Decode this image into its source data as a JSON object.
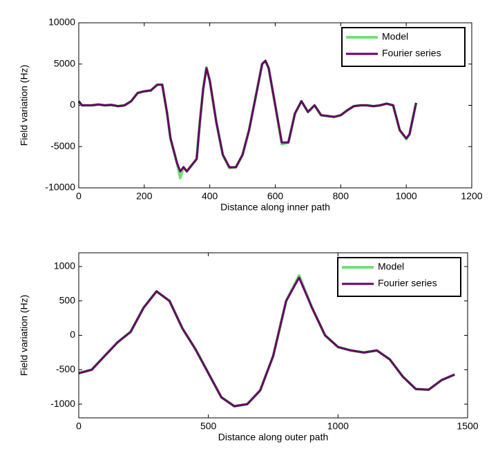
{
  "chart_data": [
    {
      "type": "line",
      "xlabel": "Distance along inner path",
      "ylabel": "Field variation (Hz)",
      "x": [
        0,
        10,
        40,
        60,
        80,
        100,
        120,
        140,
        160,
        180,
        200,
        220,
        240,
        255,
        270,
        280,
        300,
        310,
        320,
        330,
        340,
        360,
        370,
        380,
        390,
        400,
        420,
        440,
        460,
        480,
        500,
        520,
        540,
        560,
        570,
        580,
        600,
        620,
        640,
        660,
        680,
        700,
        720,
        740,
        760,
        780,
        800,
        820,
        840,
        860,
        880,
        900,
        920,
        940,
        960,
        980,
        1000,
        1010,
        1030
      ],
      "series": [
        {
          "name": "Model",
          "color": "#77dd77",
          "width": 4,
          "values": [
            500,
            0,
            0,
            100,
            0,
            50,
            -100,
            0,
            500,
            1500,
            1700,
            1800,
            2500,
            2500,
            -1000,
            -4000,
            -7000,
            -8800,
            -7500,
            -8000,
            -7500,
            -6500,
            -2000,
            2000,
            4600,
            3000,
            -2000,
            -6000,
            -7600,
            -7500,
            -6000,
            -3000,
            1000,
            5000,
            5400,
            4500,
            0,
            -4700,
            -4500,
            -1000,
            500,
            -800,
            0,
            -1200,
            -1300,
            -1400,
            -1200,
            -600,
            -100,
            0,
            0,
            -100,
            0,
            200,
            0,
            -3000,
            -4100,
            -3500,
            300
          ]
        },
        {
          "name": "Fourier series",
          "color": "#660066",
          "width": 3,
          "values": [
            500,
            0,
            0,
            100,
            0,
            50,
            -100,
            0,
            500,
            1500,
            1700,
            1800,
            2500,
            2500,
            -1000,
            -4000,
            -7000,
            -8000,
            -7500,
            -8000,
            -7500,
            -6500,
            -2000,
            2000,
            4500,
            3000,
            -2000,
            -6000,
            -7500,
            -7500,
            -6000,
            -3000,
            1000,
            5000,
            5400,
            4500,
            0,
            -4500,
            -4500,
            -1000,
            500,
            -800,
            0,
            -1200,
            -1300,
            -1400,
            -1200,
            -600,
            -100,
            0,
            0,
            -100,
            0,
            200,
            0,
            -3000,
            -4000,
            -3500,
            300
          ]
        }
      ],
      "xlim": [
        0,
        1200
      ],
      "xticks": [
        0,
        200,
        400,
        600,
        800,
        1000,
        1200
      ],
      "ylim": [
        -10000,
        10000
      ],
      "yticks": [
        -10000,
        -5000,
        0,
        5000,
        10000
      ],
      "legend": "upper right"
    },
    {
      "type": "line",
      "xlabel": "Distance along outer path",
      "ylabel": "Field variation (Hz)",
      "x": [
        0,
        50,
        100,
        150,
        200,
        250,
        300,
        350,
        400,
        450,
        500,
        550,
        600,
        650,
        700,
        750,
        800,
        850,
        900,
        950,
        1000,
        1050,
        1100,
        1150,
        1200,
        1250,
        1300,
        1350,
        1400,
        1450
      ],
      "series": [
        {
          "name": "Model",
          "color": "#77dd77",
          "width": 4,
          "values": [
            -550,
            -500,
            -300,
            -100,
            50,
            400,
            640,
            500,
            100,
            -200,
            -550,
            -900,
            -1030,
            -1000,
            -800,
            -300,
            500,
            870,
            400,
            0,
            -170,
            -220,
            -250,
            -220,
            -350,
            -600,
            -780,
            -790,
            -650,
            -570
          ]
        },
        {
          "name": "Fourier series",
          "color": "#660066",
          "width": 3,
          "values": [
            -550,
            -500,
            -300,
            -100,
            50,
            400,
            640,
            500,
            100,
            -200,
            -550,
            -900,
            -1030,
            -1000,
            -800,
            -300,
            500,
            840,
            400,
            0,
            -170,
            -220,
            -250,
            -220,
            -350,
            -600,
            -780,
            -790,
            -650,
            -570
          ]
        }
      ],
      "xlim": [
        0,
        1500
      ],
      "xticks": [
        0,
        500,
        1000,
        1500
      ],
      "ylim": [
        -1200,
        1200
      ],
      "yticks": [
        -1000,
        -500,
        0,
        500,
        1000
      ],
      "legend": "upper right"
    }
  ]
}
